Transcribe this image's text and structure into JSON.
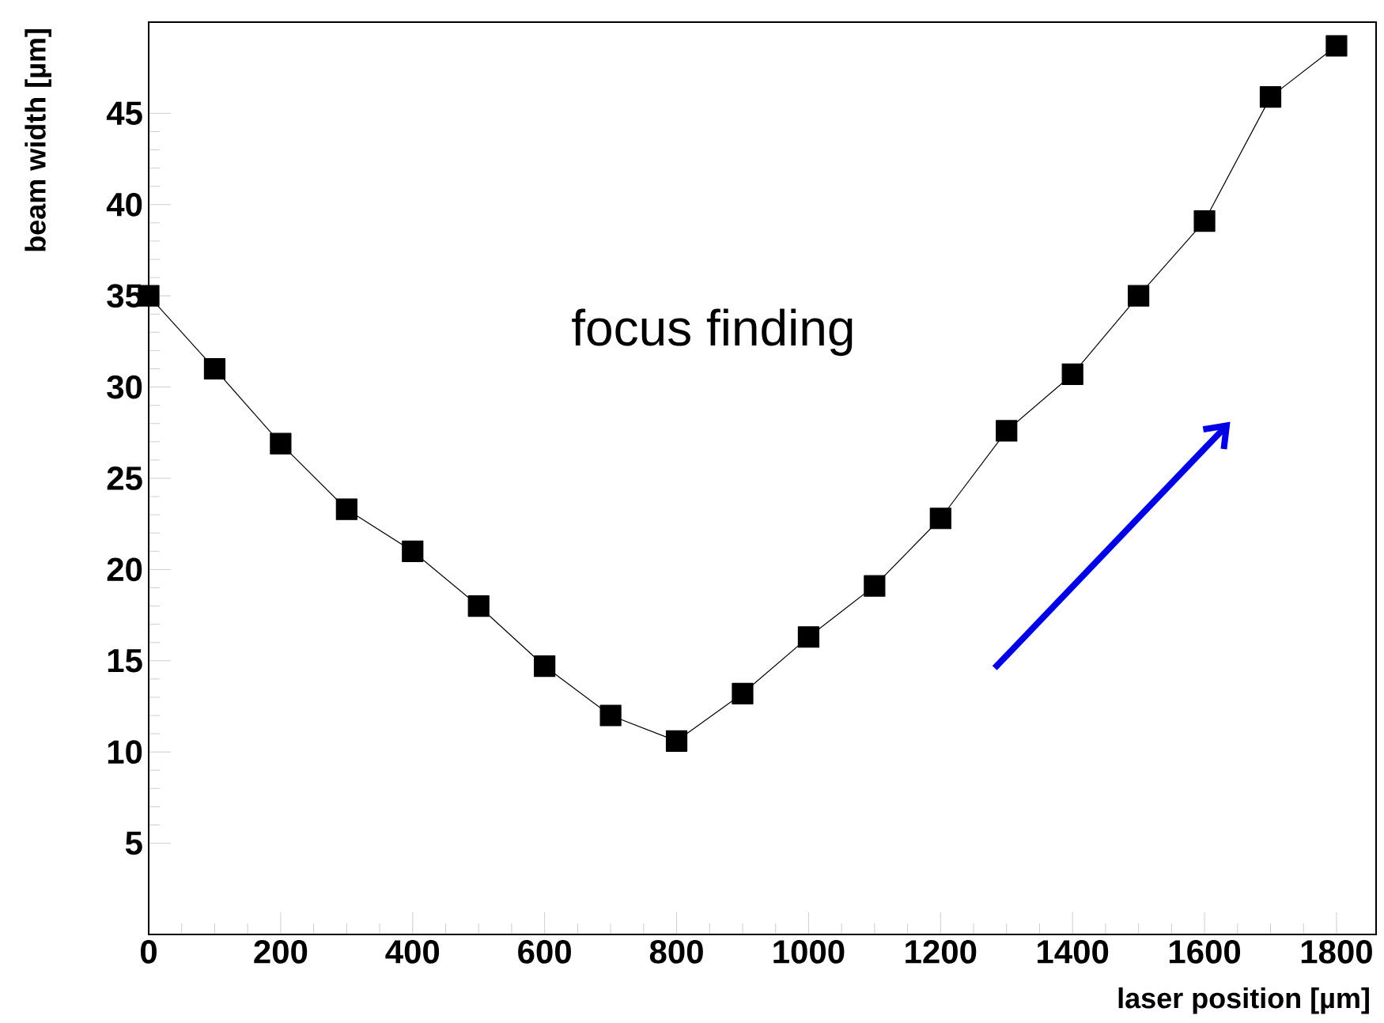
{
  "chart_data": {
    "type": "line",
    "xlabel": "laser position [µm]",
    "ylabel": "beam width [µm]",
    "x": [
      0,
      100,
      200,
      300,
      400,
      500,
      600,
      700,
      800,
      900,
      1000,
      1100,
      1200,
      1300,
      1400,
      1500,
      1600,
      1700,
      1800
    ],
    "values": [
      35,
      31.0,
      26.9,
      23.3,
      21.0,
      18.0,
      14.7,
      12.0,
      10.6,
      13.2,
      16.3,
      19.1,
      22.8,
      27.6,
      30.7,
      35.0,
      39.1,
      45.9,
      48.7
    ],
    "color": "#000000",
    "marker": "square",
    "line_style": "solid",
    "xlim": [
      0,
      1860
    ],
    "ylim": [
      0,
      50
    ],
    "xticks": [
      0,
      200,
      400,
      600,
      800,
      1000,
      1200,
      1400,
      1600,
      1800
    ],
    "yticks": [
      5,
      10,
      15,
      20,
      25,
      30,
      35,
      40,
      45
    ],
    "annotations": [
      "focus finding"
    ]
  }
}
